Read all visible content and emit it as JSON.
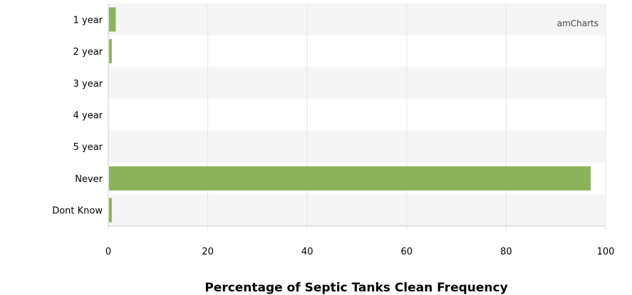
{
  "chart_data": {
    "type": "bar",
    "orientation": "horizontal",
    "categories": [
      "1 year",
      "2 year",
      "3 year",
      "4 year",
      "5 year",
      "Never",
      "Dont Know"
    ],
    "values": [
      1.5,
      0.7,
      0,
      0,
      0,
      97,
      0.7
    ],
    "xlabel": "Percentage of Septic Tanks Clean Frequency",
    "ylabel": "",
    "xlim": [
      0,
      100
    ],
    "x_ticks": [
      "0",
      "20",
      "40",
      "60",
      "80",
      "100"
    ],
    "grid": true,
    "colors": {
      "bar": "#8db35a",
      "band_alt": "#f5f5f5",
      "grid": "#e4e4e4",
      "axis": "#cccccc"
    }
  },
  "watermark": "amCharts"
}
